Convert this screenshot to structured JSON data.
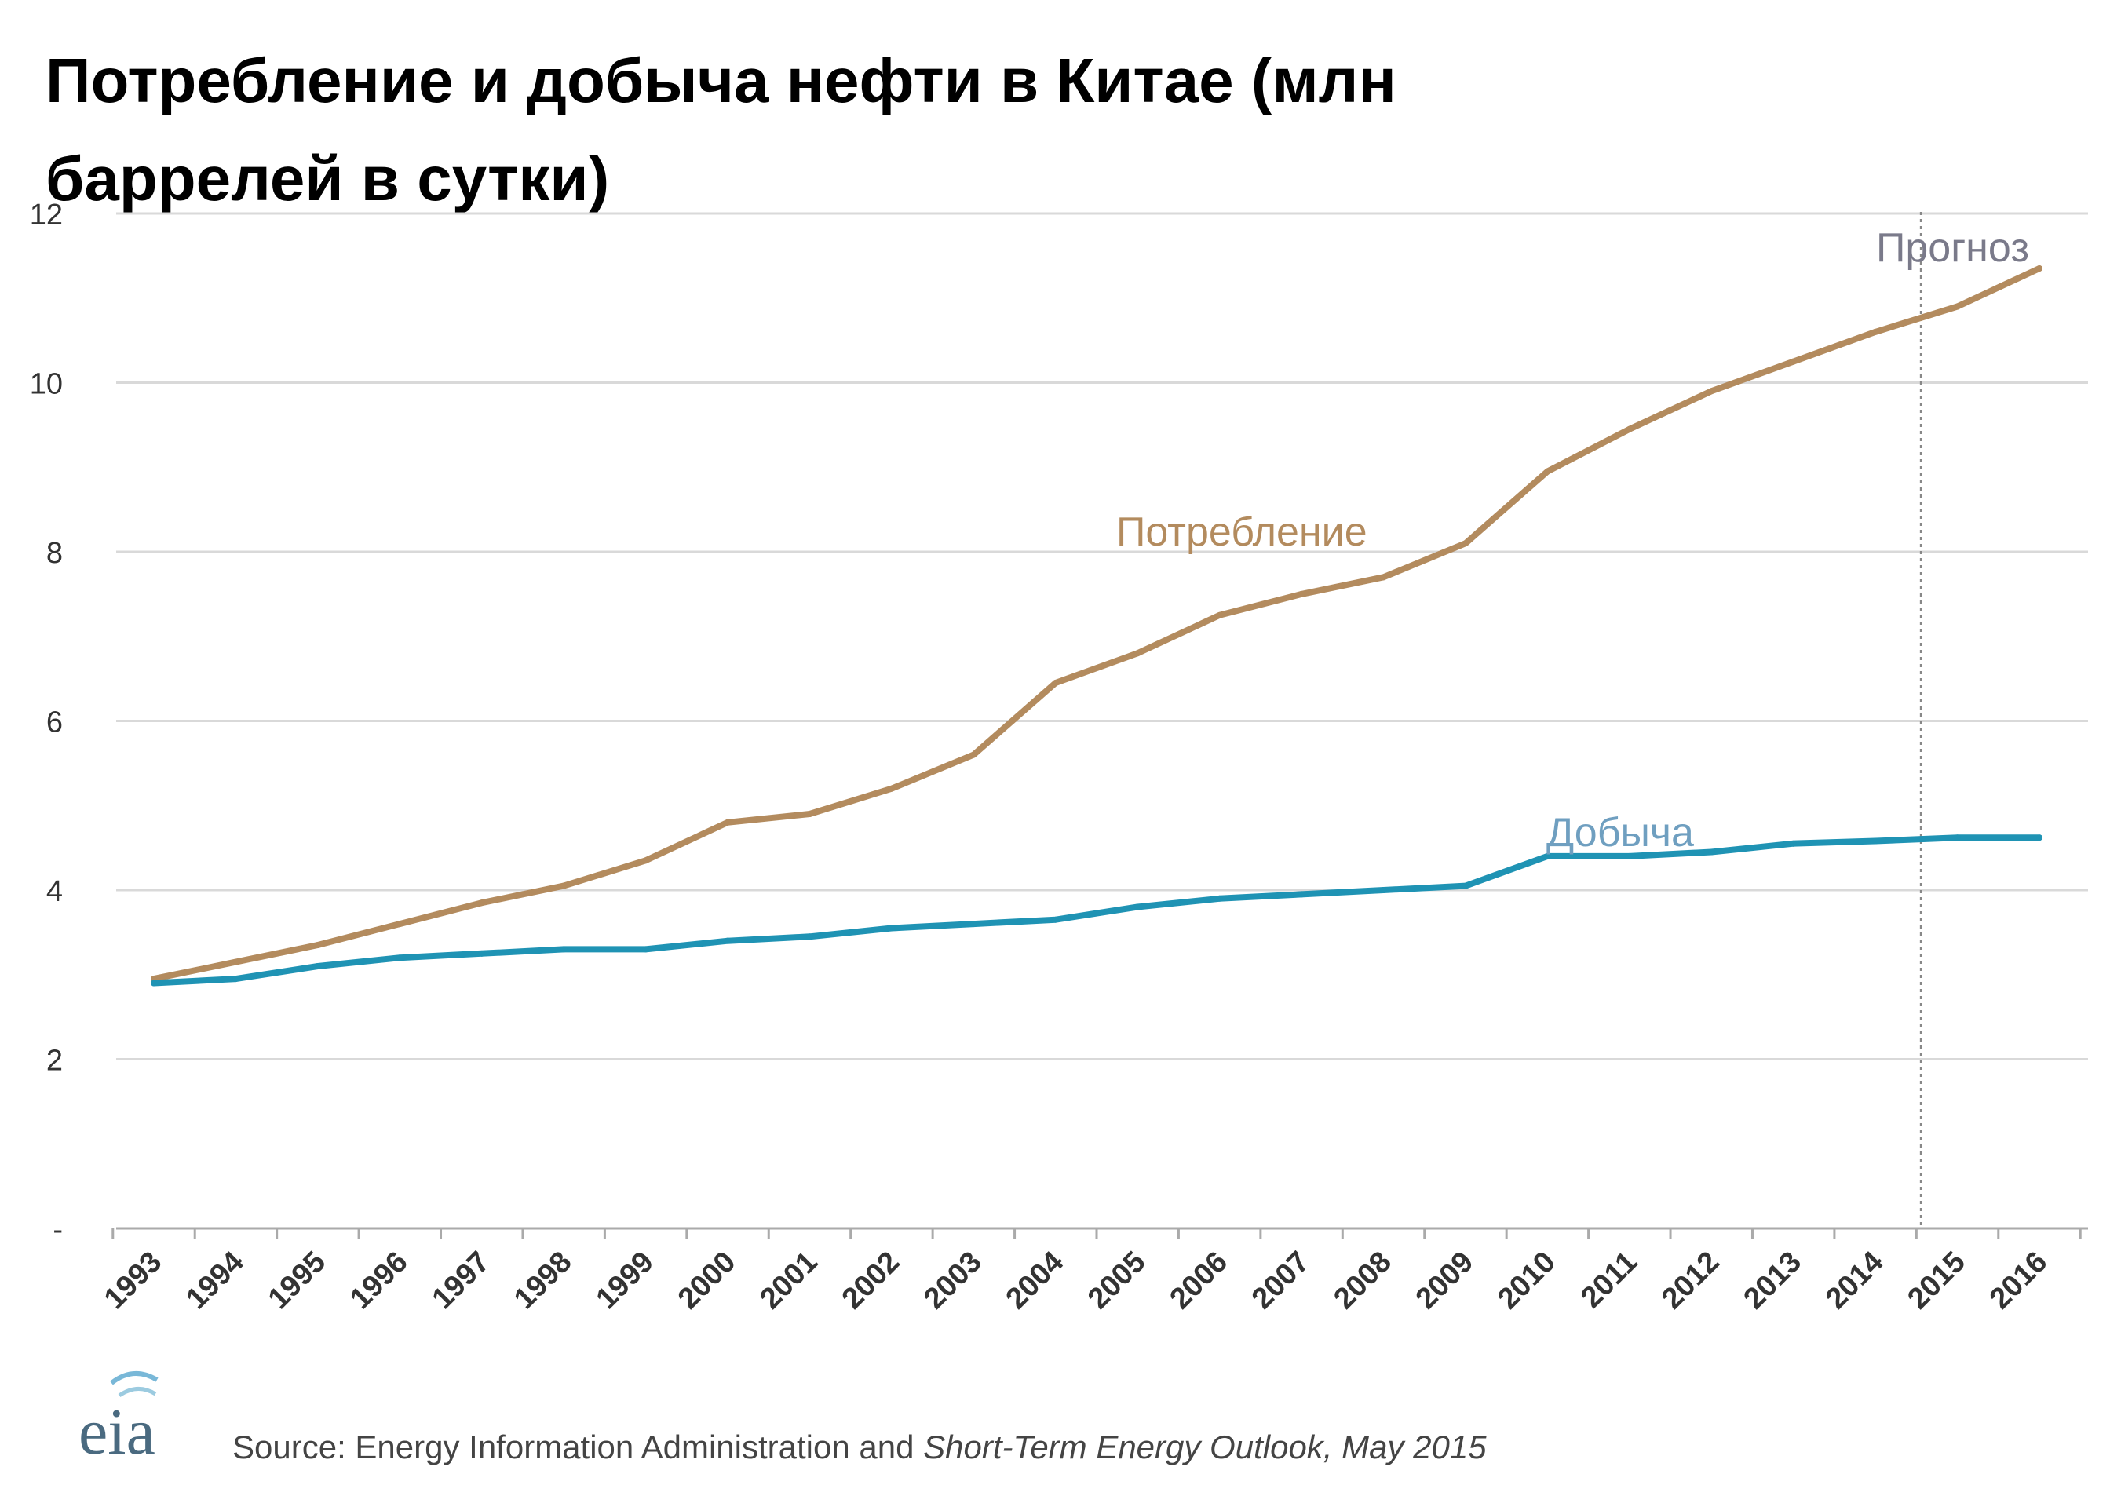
{
  "colors": {
    "consumption": "#b38b5e",
    "production": "#1f93b4",
    "grid": "#d9d9d9",
    "forecast_line": "#888888",
    "production_label": "#6f9fc0",
    "forecast_label": "#7a7a8a"
  },
  "chart_data": {
    "type": "line",
    "title_lines": [
      "Потребление и добыча нефти в Китае (млн",
      "баррелей в сутки)"
    ],
    "categories": [
      "1993",
      "1994",
      "1995",
      "1996",
      "1997",
      "1998",
      "1999",
      "2000",
      "2001",
      "2002",
      "2003",
      "2004",
      "2005",
      "2006",
      "2007",
      "2008",
      "2009",
      "2010",
      "2011",
      "2012",
      "2013",
      "2014",
      "2015",
      "2016"
    ],
    "y_ticks": [
      "-",
      "2",
      "4",
      "6",
      "8",
      "10",
      "12"
    ],
    "ylim": [
      0,
      12
    ],
    "series": [
      {
        "name": "Потребление",
        "values": [
          2.95,
          3.15,
          3.35,
          3.6,
          3.85,
          4.05,
          4.35,
          4.8,
          4.9,
          5.2,
          5.6,
          6.45,
          6.8,
          7.25,
          7.5,
          7.7,
          8.1,
          8.95,
          9.45,
          9.9,
          10.25,
          10.6,
          10.9,
          11.35
        ]
      },
      {
        "name": "Добыча",
        "values": [
          2.9,
          2.95,
          3.1,
          3.2,
          3.25,
          3.3,
          3.3,
          3.4,
          3.45,
          3.55,
          3.6,
          3.65,
          3.8,
          3.9,
          3.95,
          4.0,
          4.05,
          4.4,
          4.4,
          4.45,
          4.55,
          4.58,
          4.62,
          4.62
        ]
      }
    ],
    "annotations": {
      "consumption_label": "Потребление",
      "production_label": "Добыча",
      "forecast_label": "Прогноз"
    },
    "forecast_start_year": "2014",
    "source": "Source: Energy Information Administration and Short-Term Energy Outlook, May 2015",
    "source_parts": {
      "prefix": "Source: Energy Information Administration and ",
      "italic": "Short-Term Energy Outlook,",
      "suffix": " May 2015"
    },
    "logo_text": "eia"
  }
}
